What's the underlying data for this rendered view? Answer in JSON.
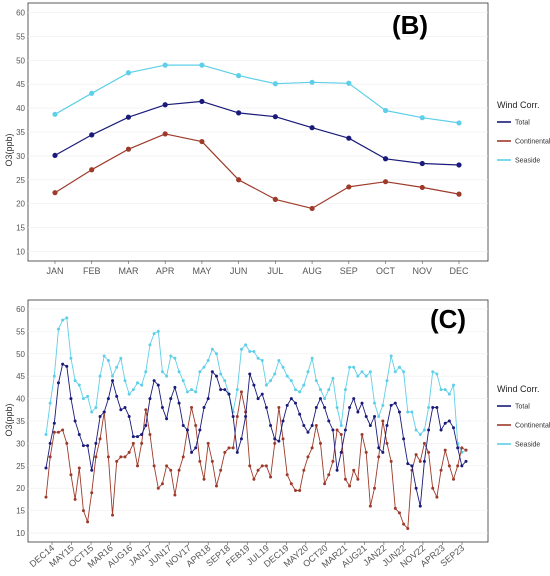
{
  "chart_data": [
    {
      "type": "line",
      "panel_label": "(B)",
      "ylabel": "O3(ppb)",
      "ylim": [
        8,
        62
      ],
      "yticks": [
        10,
        15,
        20,
        25,
        30,
        35,
        40,
        45,
        50,
        55,
        60
      ],
      "categories": [
        "JAN",
        "FEB",
        "MAR",
        "APR",
        "MAY",
        "JUN",
        "JUL",
        "AUG",
        "SEP",
        "OCT",
        "NOV",
        "DEC"
      ],
      "legend_title": "Wind Corr.",
      "legend_position": "right",
      "series": [
        {
          "name": "Total",
          "color": "#1a1a7a",
          "values": [
            30.1,
            34.4,
            38.1,
            40.7,
            41.4,
            39.0,
            38.2,
            35.9,
            33.7,
            29.4,
            28.4,
            28.1
          ]
        },
        {
          "name": "Continental",
          "color": "#9e3a2a",
          "values": [
            22.3,
            27.1,
            31.4,
            34.6,
            33.0,
            25.0,
            20.9,
            19.0,
            23.5,
            24.6,
            23.4,
            22.0
          ]
        },
        {
          "name": "Seaside",
          "color": "#5ecfe8",
          "values": [
            38.7,
            43.1,
            47.4,
            49.0,
            49.0,
            46.8,
            45.1,
            45.4,
            45.2,
            39.5,
            38.0,
            36.9
          ]
        }
      ]
    },
    {
      "type": "line",
      "panel_label": "(C)",
      "ylabel": "O3(ppb)",
      "ylim": [
        8,
        62
      ],
      "yticks": [
        10,
        15,
        20,
        25,
        30,
        35,
        40,
        45,
        50,
        55,
        60
      ],
      "xtick_labels": [
        "DEC14",
        "MAY15",
        "OCT15",
        "MAR16",
        "AUG16",
        "JAN17",
        "JUN17",
        "NOV17",
        "APR18",
        "SEP18",
        "FEB19",
        "JUL19",
        "DEC19",
        "MAY20",
        "OCT20",
        "MAR21",
        "AUG21",
        "JAN22",
        "JUN22",
        "NOV22",
        "APR23",
        "SEP23"
      ],
      "legend_title": "Wind Corr.",
      "legend_position": "right",
      "series": [
        {
          "name": "Total",
          "color": "#1a1a7a",
          "values": [
            24.5,
            30.0,
            34.5,
            43.5,
            47.7,
            47.2,
            40.0,
            35.0,
            32.0,
            29.5,
            29.5,
            24.0,
            30.0,
            36.0,
            37.0,
            40.0,
            44.0,
            40.5,
            37.5,
            38.0,
            36.0,
            31.5,
            31.5,
            32.0,
            34.0,
            40.0,
            44.0,
            43.0,
            38.0,
            35.5,
            40.0,
            42.5,
            39.0,
            34.0,
            33.0,
            28.0,
            29.0,
            33.0,
            38.0,
            40.0,
            46.0,
            45.0,
            42.0,
            42.0,
            41.0,
            36.0,
            28.0,
            31.0,
            36.0,
            45.5,
            43.0,
            40.0,
            41.0,
            38.0,
            34.0,
            31.0,
            30.5,
            35.0,
            38.5,
            40.0,
            39.0,
            36.5,
            34.0,
            32.5,
            34.0,
            38.0,
            40.0,
            38.0,
            35.0,
            33.0,
            24.0,
            28.0,
            33.0,
            38.0,
            40.0,
            37.0,
            39.0,
            36.0,
            34.0,
            36.0,
            29.0,
            28.0,
            34.0,
            38.5,
            39.0,
            37.0,
            31.0,
            25.5,
            25.0,
            20.0,
            16.0,
            26.0,
            33.0,
            38.0,
            38.0,
            33.0,
            34.5,
            35.0,
            33.5,
            29.0,
            25.0,
            26.0
          ]
        },
        {
          "name": "Continental",
          "color": "#9e3a2a",
          "values": [
            18.0,
            27.0,
            32.5,
            32.5,
            33.0,
            30.0,
            23.0,
            17.5,
            24.5,
            15.0,
            12.5,
            19.0,
            27.0,
            31.0,
            37.0,
            27.0,
            14.0,
            26.0,
            27.0,
            27.0,
            28.0,
            30.0,
            25.0,
            30.0,
            37.5,
            32.0,
            25.0,
            20.0,
            21.0,
            25.0,
            24.0,
            18.5,
            24.0,
            27.0,
            33.0,
            38.0,
            34.0,
            26.0,
            22.0,
            30.0,
            26.0,
            20.5,
            24.0,
            28.0,
            29.0,
            29.0,
            36.0,
            41.5,
            37.0,
            25.0,
            22.0,
            24.0,
            25.0,
            25.0,
            22.5,
            30.0,
            38.0,
            31.0,
            23.0,
            21.0,
            19.5,
            19.5,
            24.0,
            27.0,
            29.0,
            34.0,
            30.0,
            21.0,
            23.0,
            26.0,
            33.0,
            32.0,
            22.0,
            20.5,
            24.0,
            22.0,
            32.0,
            28.0,
            16.0,
            20.0,
            27.0,
            35.0,
            30.0,
            26.0,
            15.5,
            14.5,
            12.0,
            11.0,
            24.0,
            27.5,
            26.0,
            30.0,
            28.0,
            20.0,
            18.0,
            24.0,
            28.5,
            25.0,
            22.0,
            25.0,
            29.0,
            28.5
          ]
        },
        {
          "name": "Seaside",
          "color": "#5ecfe8",
          "values": [
            32.0,
            39.0,
            45.0,
            55.5,
            57.5,
            58.0,
            49.0,
            44.0,
            43.0,
            40.0,
            40.5,
            37.0,
            38.0,
            45.0,
            49.5,
            48.5,
            45.0,
            47.0,
            49.0,
            44.0,
            41.0,
            42.0,
            43.5,
            43.0,
            46.0,
            52.0,
            54.5,
            55.0,
            46.0,
            45.0,
            49.5,
            49.0,
            46.0,
            44.0,
            41.5,
            42.0,
            41.5,
            46.0,
            47.0,
            48.5,
            51.0,
            50.0,
            45.5,
            44.0,
            41.0,
            37.0,
            42.0,
            51.0,
            52.0,
            50.5,
            50.5,
            49.0,
            48.5,
            43.0,
            44.0,
            45.5,
            48.5,
            47.0,
            45.0,
            44.0,
            42.0,
            41.5,
            43.0,
            46.0,
            49.0,
            44.0,
            42.0,
            40.0,
            42.0,
            44.5,
            38.0,
            34.0,
            42.0,
            47.0,
            47.0,
            45.0,
            46.0,
            45.0,
            46.0,
            39.0,
            36.0,
            38.5,
            44.0,
            49.5,
            46.0,
            47.0,
            46.0,
            37.0,
            37.0,
            33.0,
            32.0,
            33.0,
            38.0,
            46.0,
            45.5,
            42.0,
            42.0,
            41.0,
            43.0,
            30.0,
            28.0,
            28.5
          ]
        }
      ]
    }
  ]
}
